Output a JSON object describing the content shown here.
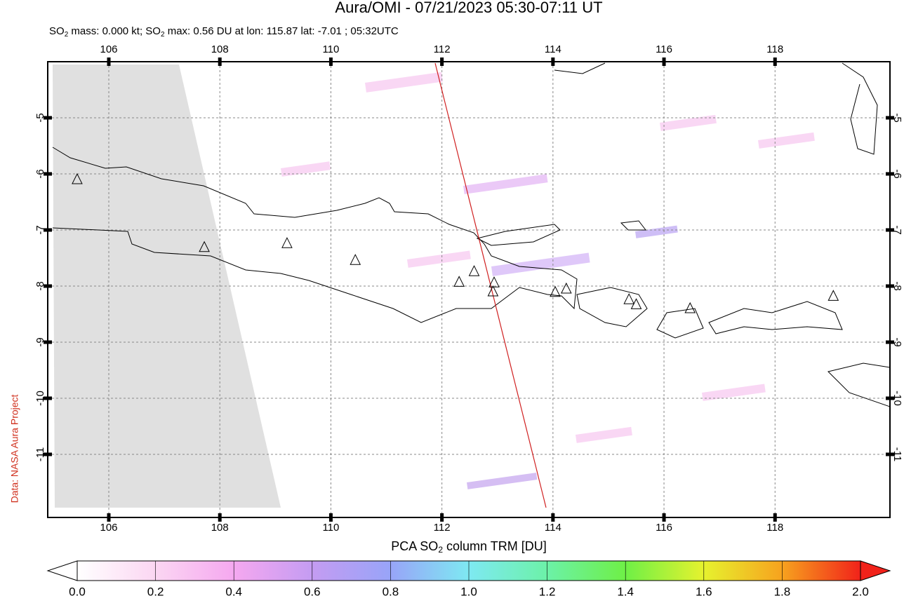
{
  "map": {
    "title": "Aura/OMI - 07/21/2023 05:30-07:11 UT",
    "subtitle": [
      "SO",
      "2",
      " mass: 0.000 kt; SO",
      "2",
      " max: 0.56 DU at lon: 115.87 lat: -7.01 ; 05:32UTC"
    ],
    "side_note": "Data: NASA Aura Project",
    "xlim": [
      104.9,
      120.07
    ],
    "ylim": [
      -12.125,
      -4.0
    ],
    "xticks": [
      106,
      108,
      110,
      112,
      114,
      116,
      118
    ],
    "yticks": [
      -5,
      -6,
      -7,
      -8,
      -9,
      -10,
      -11
    ],
    "grid": true,
    "volcanoes": {
      "lon": [
        105.43,
        107.72,
        109.21,
        110.44,
        112.31,
        112.58,
        112.94,
        112.92,
        114.04,
        114.24,
        115.37,
        115.5,
        116.47,
        119.05
      ],
      "lat": [
        -6.1,
        -7.31,
        -7.24,
        -7.54,
        -7.93,
        -7.74,
        -7.94,
        -8.1,
        -8.11,
        -8.05,
        -8.24,
        -8.33,
        -8.4,
        -8.18
      ]
    },
    "colorbar": {
      "label": [
        "PCA SO",
        "2",
        " column TRM [DU]"
      ],
      "lim": [
        0,
        2
      ],
      "ticks": [
        {
          "value": 0,
          "label": "0.0"
        },
        {
          "value": 0.2,
          "label": "0.2"
        },
        {
          "value": 0.4,
          "label": "0.4"
        },
        {
          "value": 0.6,
          "label": "0.6"
        },
        {
          "value": 0.8,
          "label": "0.8"
        },
        {
          "value": 1,
          "label": "1.0"
        },
        {
          "value": 1.2,
          "label": "1.2"
        },
        {
          "value": 1.4,
          "label": "1.4"
        },
        {
          "value": 1.6,
          "label": "1.6"
        },
        {
          "value": 1.8,
          "label": "1.8"
        },
        {
          "value": 2,
          "label": "2.0"
        }
      ]
    }
  }
}
